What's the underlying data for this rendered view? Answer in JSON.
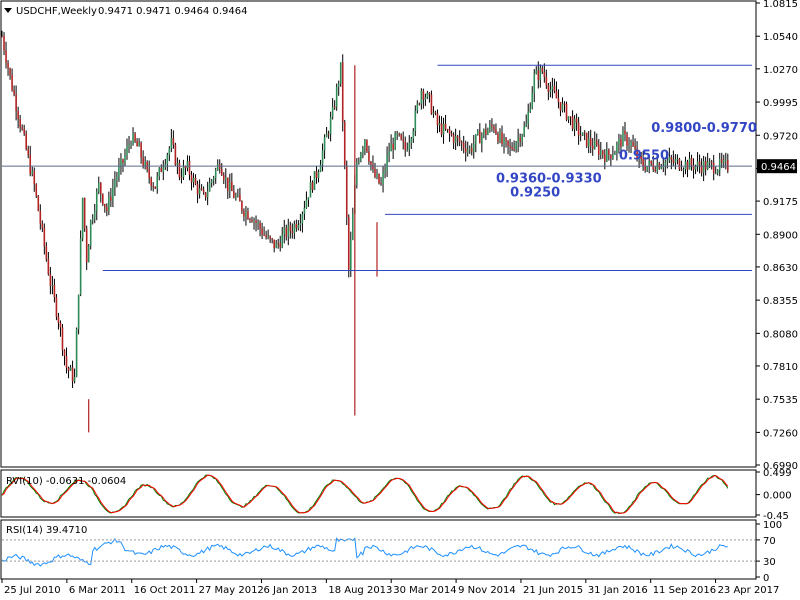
{
  "chart_data": {
    "type": "bar",
    "header": {
      "symbol": "USDCHF,Weekly",
      "ohlc": "0.9471 0.9471 0.9464 0.9464"
    },
    "price_axis": {
      "ticks": [
        "1.0815",
        "1.0540",
        "1.0270",
        "0.9995",
        "0.9720",
        "0.9445",
        "0.9175",
        "0.8900",
        "0.8630",
        "0.8355",
        "0.8080",
        "0.7810",
        "0.7535",
        "0.7260",
        "0.6990"
      ],
      "ylim": [
        0.699,
        1.0815
      ],
      "current_price_label": "0.9464"
    },
    "x_axis": {
      "ticks": [
        "25 Jul 2010",
        "6 Mar 2011",
        "16 Oct 2011",
        "27 May 2012",
        "6 Jan 2013",
        "18 Aug 2013",
        "30 Mar 2014",
        "9 Nov 2014",
        "21 Jun 2015",
        "31 Jan 2016",
        "11 Sep 2016",
        "23 Apr 2017"
      ]
    },
    "price_series": {
      "name": "USDCHF",
      "x": [
        0,
        4,
        8,
        12,
        16,
        20,
        24,
        28,
        32,
        36,
        40,
        42,
        44,
        48,
        52,
        56,
        60,
        64,
        68,
        72,
        76,
        80,
        84,
        88,
        92,
        96,
        100,
        104,
        108,
        112,
        116,
        120,
        124,
        128,
        132,
        136,
        140,
        144,
        148,
        152,
        156,
        160,
        164,
        168,
        172,
        176,
        180,
        184,
        188,
        192,
        196,
        200,
        204,
        208,
        212,
        216,
        220,
        224,
        228,
        232,
        236,
        240,
        244,
        248,
        252,
        256,
        260,
        264,
        268,
        272,
        276,
        280,
        284,
        288,
        296,
        300,
        304,
        308,
        312,
        316,
        320,
        324,
        328,
        332,
        336,
        340,
        344,
        348,
        352,
        354,
        356,
        360
      ],
      "close": [
        1.054,
        1.02,
        0.99,
        0.96,
        0.93,
        0.89,
        0.85,
        0.82,
        0.78,
        0.77,
        0.92,
        0.87,
        0.9,
        0.93,
        0.91,
        0.935,
        0.95,
        0.97,
        0.96,
        0.94,
        0.93,
        0.95,
        0.965,
        0.94,
        0.945,
        0.93,
        0.92,
        0.935,
        0.95,
        0.93,
        0.92,
        0.91,
        0.905,
        0.895,
        0.885,
        0.88,
        0.89,
        0.895,
        0.905,
        0.925,
        0.94,
        0.965,
        0.99,
        1.027,
        0.86,
        0.95,
        0.97,
        0.94,
        0.93,
        0.96,
        0.97,
        0.96,
        0.98,
        1.01,
        1.0,
        0.98,
        0.975,
        0.97,
        0.965,
        0.96,
        0.97,
        0.975,
        0.98,
        0.965,
        0.96,
        0.97,
        0.98,
        1.02,
        1.025,
        1.01,
        1.0,
        0.99,
        0.98,
        0.97,
        0.96,
        0.955,
        0.96,
        0.97,
        0.965,
        0.95,
        0.9464,
        0.948,
        0.95,
        0.95,
        0.949,
        0.948,
        0.947,
        0.947,
        0.9464,
        0.9464,
        0.9464,
        0.9464
      ],
      "spikes": [
        {
          "x": 43,
          "low": 0.726,
          "high": 0.7535
        },
        {
          "x": 175,
          "low": 0.74,
          "high": 1.03
        },
        {
          "x": 186,
          "low": 0.855,
          "high": 0.9
        }
      ]
    },
    "levels": [
      {
        "value": 1.03,
        "x_from": 216,
        "x_to": 372
      },
      {
        "value": 0.9464,
        "x_from": 0,
        "x_to": 372
      },
      {
        "value": 0.9065,
        "x_from": 190,
        "x_to": 372
      },
      {
        "value": 0.86,
        "x_from": 50,
        "x_to": 372
      }
    ],
    "annotations": [
      "0.9800-0.9770",
      "0.9550",
      "0.9360-0.9330",
      "0.9250"
    ],
    "rvi": {
      "label": "RVI(10) -0.0631 -0.0604",
      "ticks": [
        "0.499",
        "0.000",
        "-0.45"
      ],
      "ylim": [
        -0.45,
        0.499
      ],
      "main_color": "#008000",
      "signal_color": "#ff0000"
    },
    "rsi": {
      "label": "RSI(14) 39.4710",
      "ticks": [
        "100",
        "70",
        "30",
        "0"
      ],
      "ylim": [
        0,
        100
      ],
      "color": "#1e90ff"
    },
    "colors": {
      "candle": "#000000",
      "bull": "#2e8b57",
      "bear": "#b22222",
      "level": "#3346c4",
      "annotation": "#3346c4"
    }
  }
}
